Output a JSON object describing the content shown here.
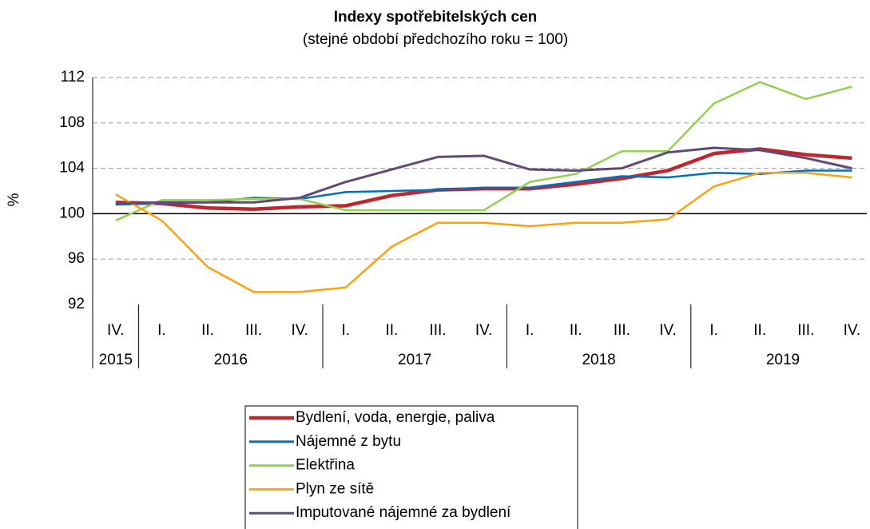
{
  "chart_data": {
    "type": "line",
    "title": "Indexy spotřebitelských cen",
    "subtitle": "(stejné období předchozího roku = 100)",
    "y_label": "%",
    "categories": [
      [
        "IV.",
        "2015"
      ],
      [
        "I.",
        "2016"
      ],
      [
        "II.",
        "2016"
      ],
      [
        "III.",
        "2016"
      ],
      [
        "IV.",
        "2016"
      ],
      [
        "I.",
        "2017"
      ],
      [
        "II.",
        "2017"
      ],
      [
        "III.",
        "2017"
      ],
      [
        "IV.",
        "2017"
      ],
      [
        "I.",
        "2018"
      ],
      [
        "II.",
        "2018"
      ],
      [
        "III.",
        "2018"
      ],
      [
        "IV.",
        "2018"
      ],
      [
        "I.",
        "2019"
      ],
      [
        "II.",
        "2019"
      ],
      [
        "III.",
        "2019"
      ],
      [
        "IV.",
        "2019"
      ]
    ],
    "ylim": [
      92,
      112
    ],
    "yticks": [
      92,
      96,
      100,
      104,
      108,
      112
    ],
    "baseline": 100,
    "grid": true,
    "series": [
      {
        "name": "Bydlení, voda, energie, paliva",
        "color": "#c0262d",
        "values": [
          101.0,
          100.9,
          100.5,
          100.4,
          100.6,
          100.7,
          101.6,
          102.1,
          102.2,
          102.2,
          102.6,
          103.1,
          103.8,
          105.3,
          105.7,
          105.2,
          104.9
        ]
      },
      {
        "name": "Nájemné z bytu",
        "color": "#0070c0",
        "values": [
          100.8,
          100.9,
          101.0,
          101.4,
          101.3,
          101.9,
          102.0,
          102.1,
          102.3,
          102.3,
          102.8,
          103.3,
          103.2,
          103.6,
          103.5,
          103.8,
          103.8
        ]
      },
      {
        "name": "Elektřina",
        "color": "#92d050",
        "values": [
          99.4,
          101.2,
          101.2,
          101.3,
          101.3,
          100.3,
          100.3,
          100.3,
          100.3,
          102.8,
          103.5,
          105.5,
          105.5,
          109.7,
          111.6,
          110.1,
          111.2
        ]
      },
      {
        "name": "Plyn ze sítě",
        "color": "#ffa010",
        "values": [
          101.7,
          99.4,
          95.3,
          93.1,
          93.1,
          93.5,
          97.1,
          99.2,
          99.2,
          98.9,
          99.2,
          99.2,
          99.5,
          102.4,
          103.6,
          103.6,
          103.2
        ]
      },
      {
        "name": "Imputované nájemné za bydlení",
        "color": "#5f4a7a",
        "values": [
          100.9,
          101.0,
          101.0,
          101.0,
          101.4,
          102.8,
          103.9,
          105.0,
          105.1,
          103.9,
          103.8,
          104.0,
          105.4,
          105.8,
          105.6,
          104.9,
          104.0
        ]
      }
    ]
  }
}
